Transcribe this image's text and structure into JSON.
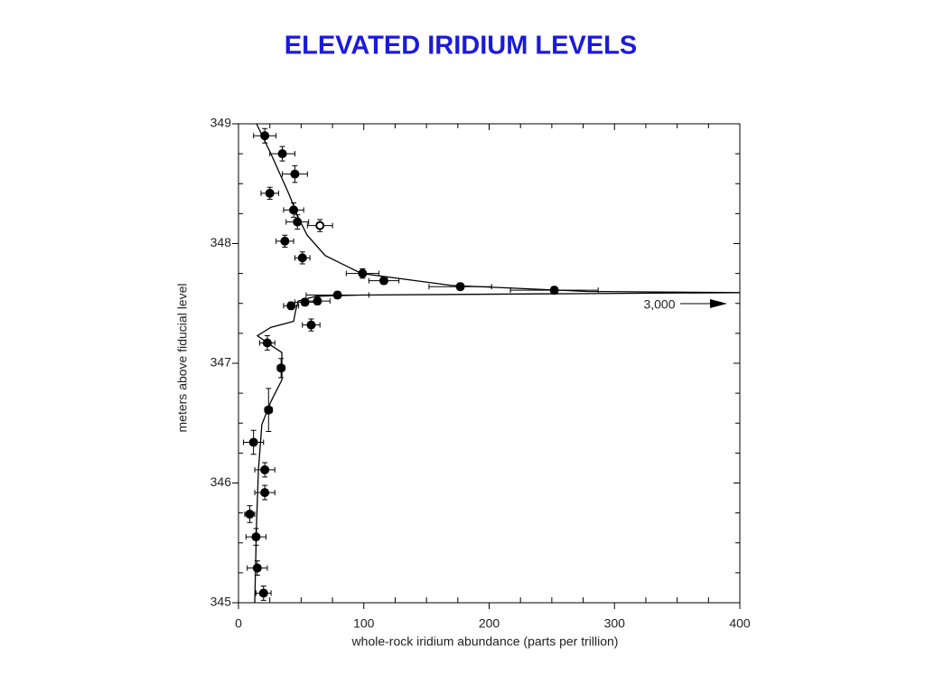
{
  "chart_data": {
    "type": "scatter",
    "title": "ELEVATED IRIDIUM LEVELS",
    "xlabel": "whole-rock iridium abundance (parts per trillion)",
    "ylabel": "meters above fiducial level",
    "annotation": "3,000",
    "x": [
      21,
      35,
      45,
      25,
      44,
      47,
      65,
      37,
      51,
      99,
      116,
      177,
      252,
      79,
      63,
      53,
      42,
      58,
      23,
      34,
      24,
      12,
      21,
      21,
      9,
      14,
      15,
      20
    ],
    "y": [
      348.9,
      348.75,
      348.58,
      348.42,
      348.28,
      348.18,
      348.15,
      348.02,
      347.88,
      347.75,
      347.69,
      347.64,
      347.61,
      347.57,
      347.52,
      347.51,
      347.48,
      347.32,
      347.17,
      346.96,
      346.61,
      346.34,
      346.11,
      345.92,
      345.74,
      345.55,
      345.29,
      345.08
    ],
    "xerr": [
      9,
      10,
      10,
      7,
      8,
      9,
      10,
      7,
      6,
      13,
      12,
      25,
      35,
      25,
      10,
      8,
      6,
      7,
      6,
      3,
      3,
      8,
      8,
      8,
      4,
      8,
      8,
      6
    ],
    "yerr": [
      0.06,
      0.06,
      0.07,
      0.05,
      0.06,
      0.06,
      0.05,
      0.05,
      0.05,
      0.04,
      0.03,
      0.03,
      0.03,
      0.03,
      0.03,
      0.03,
      0.03,
      0.05,
      0.06,
      0.08,
      0.18,
      0.1,
      0.06,
      0.06,
      0.07,
      0.07,
      0.06,
      0.06
    ],
    "hollow_points": [
      6
    ],
    "color": "#000000",
    "curve": {
      "x": [
        14.4,
        25.9,
        40.4,
        47.6,
        54.8,
        69.2,
        98,
        170,
        278,
        400,
        242,
        98,
        62,
        47.6,
        45.4,
        44,
        25.9,
        15.1,
        25.9,
        34.6,
        34.6,
        25.9,
        18.7,
        15.9,
        14.4,
        13
      ],
      "y": [
        349,
        348.75,
        348.41,
        348.22,
        348.07,
        347.9,
        347.75,
        347.65,
        347.6,
        347.59,
        347.58,
        347.57,
        347.56,
        347.52,
        347.43,
        347.35,
        347.3,
        347.23,
        347.15,
        347.09,
        346.86,
        346.68,
        346.49,
        346.11,
        345.66,
        345
      ]
    },
    "xlim": [
      0,
      400
    ],
    "ylim": [
      345,
      349
    ],
    "xticks": [
      0,
      100,
      200,
      300,
      400
    ],
    "yticks": [
      345,
      346,
      347,
      348,
      349
    ],
    "xminor": [
      25,
      50,
      75,
      125,
      150,
      175,
      225,
      250,
      275,
      325,
      350,
      375
    ],
    "yminor": [
      345.25,
      345.5,
      345.75,
      346.25,
      346.5,
      346.75,
      347.25,
      347.5,
      347.75,
      348.25,
      348.5,
      348.75
    ],
    "title_color": "#1a1adb"
  }
}
